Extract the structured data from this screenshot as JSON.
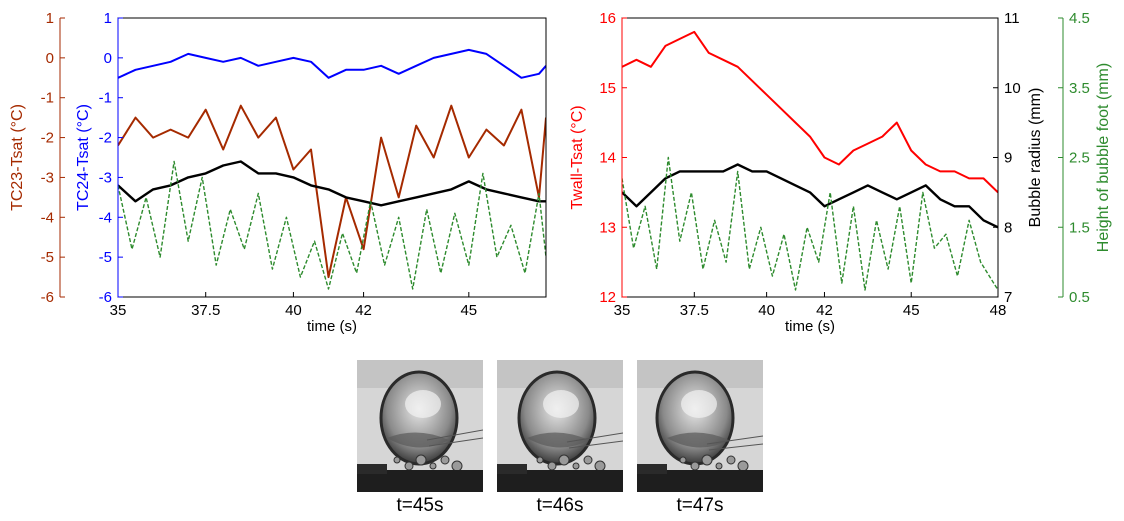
{
  "chart_data": [
    {
      "type": "line",
      "xlabel": "time (s)",
      "xlim": [
        35,
        47.2
      ],
      "x_ticks": [
        "35",
        "37.5",
        "40",
        "42",
        "45"
      ],
      "x_tick_values": [
        35,
        37.5,
        40,
        42,
        45
      ],
      "axes": [
        {
          "id": "tc23",
          "label": "TC23-Tsat (°C)",
          "color": "#a52a00",
          "lim": [
            -6,
            1
          ],
          "ticks": [
            "1",
            "0",
            "-1",
            "-2",
            "-3",
            "-4",
            "-5",
            "-6"
          ]
        },
        {
          "id": "tc24",
          "label": "TC24-Tsat (°C)",
          "color": "#0000ff",
          "lim": [
            -6,
            1
          ],
          "ticks": [
            "1",
            "0",
            "-1",
            "-2",
            "-3",
            "-4",
            "-5",
            "-6"
          ]
        }
      ],
      "series": [
        {
          "axis": "tc24",
          "color": "#0000ff",
          "style": "solid",
          "x": [
            35,
            35.5,
            36,
            36.5,
            37,
            37.5,
            38,
            38.5,
            39,
            39.5,
            40,
            40.5,
            41,
            41.5,
            42,
            42.5,
            43,
            43.5,
            44,
            44.5,
            45,
            45.5,
            46,
            46.5,
            47,
            47.2
          ],
          "y": [
            -0.5,
            -0.3,
            -0.2,
            -0.1,
            0.1,
            0.0,
            -0.1,
            0.0,
            -0.2,
            -0.1,
            0.0,
            -0.1,
            -0.5,
            -0.3,
            -0.3,
            -0.2,
            -0.4,
            -0.2,
            0.0,
            0.1,
            0.2,
            0.1,
            -0.2,
            -0.5,
            -0.4,
            -0.2
          ]
        },
        {
          "axis": "tc23",
          "color": "#a52a00",
          "style": "solid",
          "x": [
            35,
            35.5,
            36,
            36.5,
            37,
            37.5,
            38,
            38.5,
            39,
            39.5,
            40,
            40.5,
            41,
            41.5,
            42,
            42.5,
            43,
            43.5,
            44,
            44.5,
            45,
            45.5,
            46,
            46.5,
            47,
            47.2
          ],
          "y": [
            -2.2,
            -1.5,
            -2.0,
            -1.8,
            -2.0,
            -1.3,
            -2.3,
            -1.2,
            -2.0,
            -1.5,
            -2.8,
            -2.3,
            -5.5,
            -3.5,
            -4.8,
            -2.0,
            -3.5,
            -1.7,
            -2.5,
            -1.2,
            -2.5,
            -1.8,
            -2.2,
            -1.3,
            -3.5,
            -1.5
          ]
        },
        {
          "axis": "tc24",
          "color": "#000000",
          "style": "solid",
          "x": [
            35,
            35.5,
            36,
            36.5,
            37,
            37.5,
            38,
            38.5,
            39,
            39.5,
            40,
            40.5,
            41,
            41.5,
            42,
            42.5,
            43,
            43.5,
            44,
            44.5,
            45,
            45.5,
            46,
            46.5,
            47,
            47.2
          ],
          "y": [
            -3.2,
            -3.6,
            -3.3,
            -3.2,
            -3.0,
            -2.9,
            -2.7,
            -2.6,
            -2.9,
            -2.9,
            -3.0,
            -3.2,
            -3.3,
            -3.5,
            -3.6,
            -3.7,
            -3.6,
            -3.5,
            -3.4,
            -3.3,
            -3.1,
            -3.3,
            -3.4,
            -3.5,
            -3.6,
            -3.6
          ]
        },
        {
          "axis": "tc24",
          "color": "#2e8b2e",
          "style": "dashed",
          "x": [
            35,
            35.4,
            35.8,
            36.2,
            36.6,
            37.0,
            37.4,
            37.8,
            38.2,
            38.6,
            39.0,
            39.4,
            39.8,
            40.2,
            40.6,
            41.0,
            41.4,
            41.8,
            42.2,
            42.6,
            43.0,
            43.4,
            43.8,
            44.2,
            44.6,
            45.0,
            45.4,
            45.8,
            46.2,
            46.6,
            47.0,
            47.2
          ],
          "y": [
            -3.2,
            -4.8,
            -3.5,
            -5.0,
            -2.6,
            -4.6,
            -3.0,
            -5.2,
            -3.8,
            -4.8,
            -3.4,
            -5.3,
            -4.0,
            -5.5,
            -4.6,
            -5.8,
            -4.4,
            -5.4,
            -3.6,
            -5.2,
            -4.0,
            -5.8,
            -3.8,
            -5.4,
            -3.9,
            -5.2,
            -2.9,
            -5.0,
            -4.2,
            -5.4,
            -3.4,
            -5.0
          ]
        }
      ]
    },
    {
      "type": "line",
      "xlabel": "time (s)",
      "xlim": [
        35,
        48
      ],
      "x_ticks": [
        "35",
        "37.5",
        "40",
        "42",
        "45",
        "48"
      ],
      "x_tick_values": [
        35,
        37.5,
        40,
        42,
        45,
        48
      ],
      "axes": [
        {
          "id": "twall",
          "label": "Twall-Tsat (°C)",
          "color": "#ff0000",
          "lim": [
            12,
            16
          ],
          "ticks": [
            "16",
            "15",
            "14",
            "13",
            "12"
          ]
        },
        {
          "id": "radius",
          "label": "Bubble radius (mm)",
          "color": "#000000",
          "lim": [
            7,
            11
          ],
          "ticks": [
            "11",
            "10",
            "9",
            "8",
            "7"
          ]
        },
        {
          "id": "foot",
          "label": "Height of bubble foot (mm)",
          "color": "#2e8b2e",
          "lim": [
            0.5,
            4.5
          ],
          "ticks": [
            "4.5",
            "3.5",
            "2.5",
            "1.5",
            "0.5"
          ]
        }
      ],
      "series": [
        {
          "axis": "twall",
          "color": "#ff0000",
          "style": "solid",
          "x": [
            35,
            35.5,
            36,
            36.5,
            37,
            37.5,
            38,
            38.5,
            39,
            39.5,
            40,
            40.5,
            41,
            41.5,
            42,
            42.5,
            43,
            43.5,
            44,
            44.5,
            45,
            45.5,
            46,
            46.5,
            47,
            47.5,
            48
          ],
          "y": [
            15.3,
            15.4,
            15.3,
            15.6,
            15.7,
            15.8,
            15.5,
            15.4,
            15.3,
            15.1,
            14.9,
            14.7,
            14.5,
            14.3,
            14.0,
            13.9,
            14.1,
            14.2,
            14.3,
            14.5,
            14.1,
            13.9,
            13.8,
            13.8,
            13.7,
            13.7,
            13.5
          ]
        },
        {
          "axis": "radius",
          "color": "#000000",
          "style": "solid",
          "x": [
            35,
            35.5,
            36,
            36.5,
            37,
            37.5,
            38,
            38.5,
            39,
            39.5,
            40,
            40.5,
            41,
            41.5,
            42,
            42.5,
            43,
            43.5,
            44,
            44.5,
            45,
            45.5,
            46,
            46.5,
            47,
            47.5,
            48
          ],
          "y": [
            8.5,
            8.3,
            8.5,
            8.7,
            8.8,
            8.8,
            8.8,
            8.8,
            8.9,
            8.8,
            8.8,
            8.7,
            8.6,
            8.5,
            8.3,
            8.4,
            8.5,
            8.6,
            8.5,
            8.4,
            8.5,
            8.6,
            8.4,
            8.3,
            8.3,
            8.1,
            8.0
          ]
        },
        {
          "axis": "foot",
          "color": "#2e8b2e",
          "style": "dashed",
          "x": [
            35,
            35.4,
            35.8,
            36.2,
            36.6,
            37.0,
            37.4,
            37.8,
            38.2,
            38.6,
            39.0,
            39.4,
            39.8,
            40.2,
            40.6,
            41.0,
            41.4,
            41.8,
            42.2,
            42.6,
            43.0,
            43.4,
            43.8,
            44.2,
            44.6,
            45.0,
            45.4,
            45.8,
            46.2,
            46.6,
            47.0,
            47.4,
            48
          ],
          "y": [
            2.2,
            1.2,
            1.8,
            0.9,
            2.5,
            1.3,
            2.0,
            0.9,
            1.6,
            1.0,
            2.3,
            0.9,
            1.5,
            0.8,
            1.4,
            0.6,
            1.5,
            1.0,
            2.0,
            0.7,
            1.8,
            0.6,
            1.6,
            0.9,
            1.8,
            0.7,
            2.0,
            1.2,
            1.4,
            0.8,
            1.6,
            1.0,
            0.6
          ]
        }
      ]
    }
  ],
  "photos": [
    {
      "caption": "t=45s"
    },
    {
      "caption": "t=46s"
    },
    {
      "caption": "t=47s"
    }
  ]
}
